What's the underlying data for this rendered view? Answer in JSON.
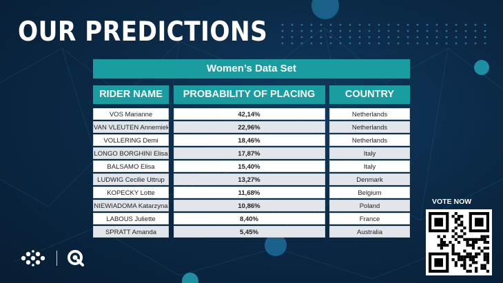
{
  "title": "OUR PREDICTIONS",
  "table": {
    "banner": "Women’s Data Set",
    "headers": {
      "rider": "RIDER NAME",
      "probability": "PROBABILITY OF PLACING",
      "country": "COUNTRY"
    },
    "rows": [
      {
        "rider": "VOS Marianne",
        "probability": "42,14%",
        "country": "Netherlands"
      },
      {
        "rider": "VAN VLEUTEN Annemiek",
        "probability": "22,96%",
        "country": "Netherlands"
      },
      {
        "rider": "VOLLERING Demi",
        "probability": "18,46%",
        "country": "Netherlands"
      },
      {
        "rider": "LONGO BORGHINI Elisa",
        "probability": "17,87%",
        "country": "Italy"
      },
      {
        "rider": "BALSAMO Elisa",
        "probability": "15,40%",
        "country": "Italy"
      },
      {
        "rider": "LUDWIG Cecilie Uttrup",
        "probability": "13,27%",
        "country": "Denmark"
      },
      {
        "rider": "KOPECKY Lotte",
        "probability": "11,68%",
        "country": "Belgium"
      },
      {
        "rider": "NIEWIADOMA Katarzyna",
        "probability": "10,86%",
        "country": "Poland"
      },
      {
        "rider": "LABOUS Juliette",
        "probability": "8,40%",
        "country": "France"
      },
      {
        "rider": "SPRATT Amanda",
        "probability": "5,45%",
        "country": "Australia"
      }
    ]
  },
  "vote": {
    "label": "VOTE NOW"
  },
  "colors": {
    "accent": "#1a9da0",
    "background": "#0b2a47"
  },
  "icons": {
    "brand_logo": "cycling-dots-logo-icon",
    "partner_logo": "qlik-q-logo-icon",
    "qr": "qr-code-icon"
  }
}
